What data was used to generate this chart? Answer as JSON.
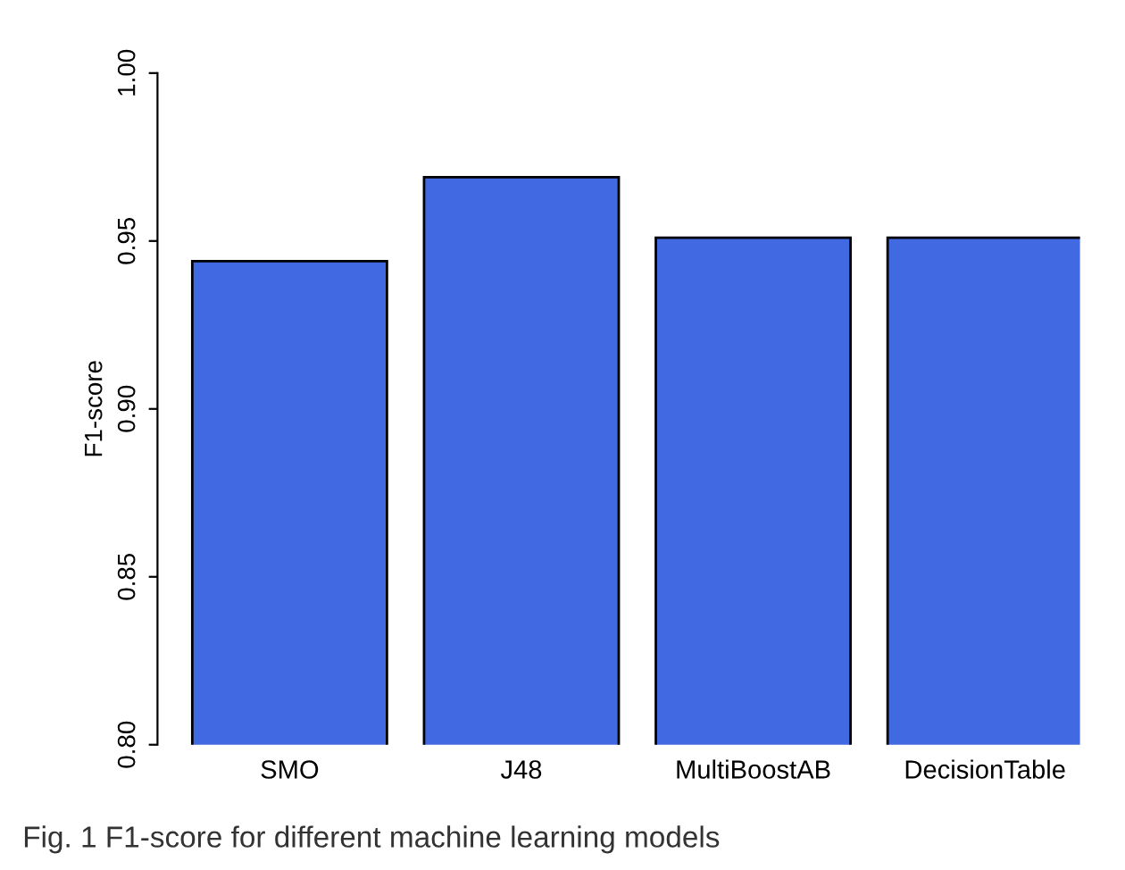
{
  "chart_data": {
    "type": "bar",
    "ylabel": "F1-score",
    "categories": [
      "SMO",
      "J48",
      "MultiBoostAB",
      "DecisionTable"
    ],
    "values": [
      0.944,
      0.969,
      0.951,
      0.951
    ],
    "color": "#4169e1",
    "ylim": [
      0.8,
      1.0
    ],
    "yticks": [
      {
        "value": 0.8,
        "label": "0.80"
      },
      {
        "value": 0.85,
        "label": "0.85"
      },
      {
        "value": 0.9,
        "label": "0.90"
      },
      {
        "value": 0.95,
        "label": "0.95"
      },
      {
        "value": 1.0,
        "label": "1.00"
      }
    ],
    "grid": false,
    "annotations": [
      "Fig. 1 F1-score for different machine learning models"
    ]
  }
}
